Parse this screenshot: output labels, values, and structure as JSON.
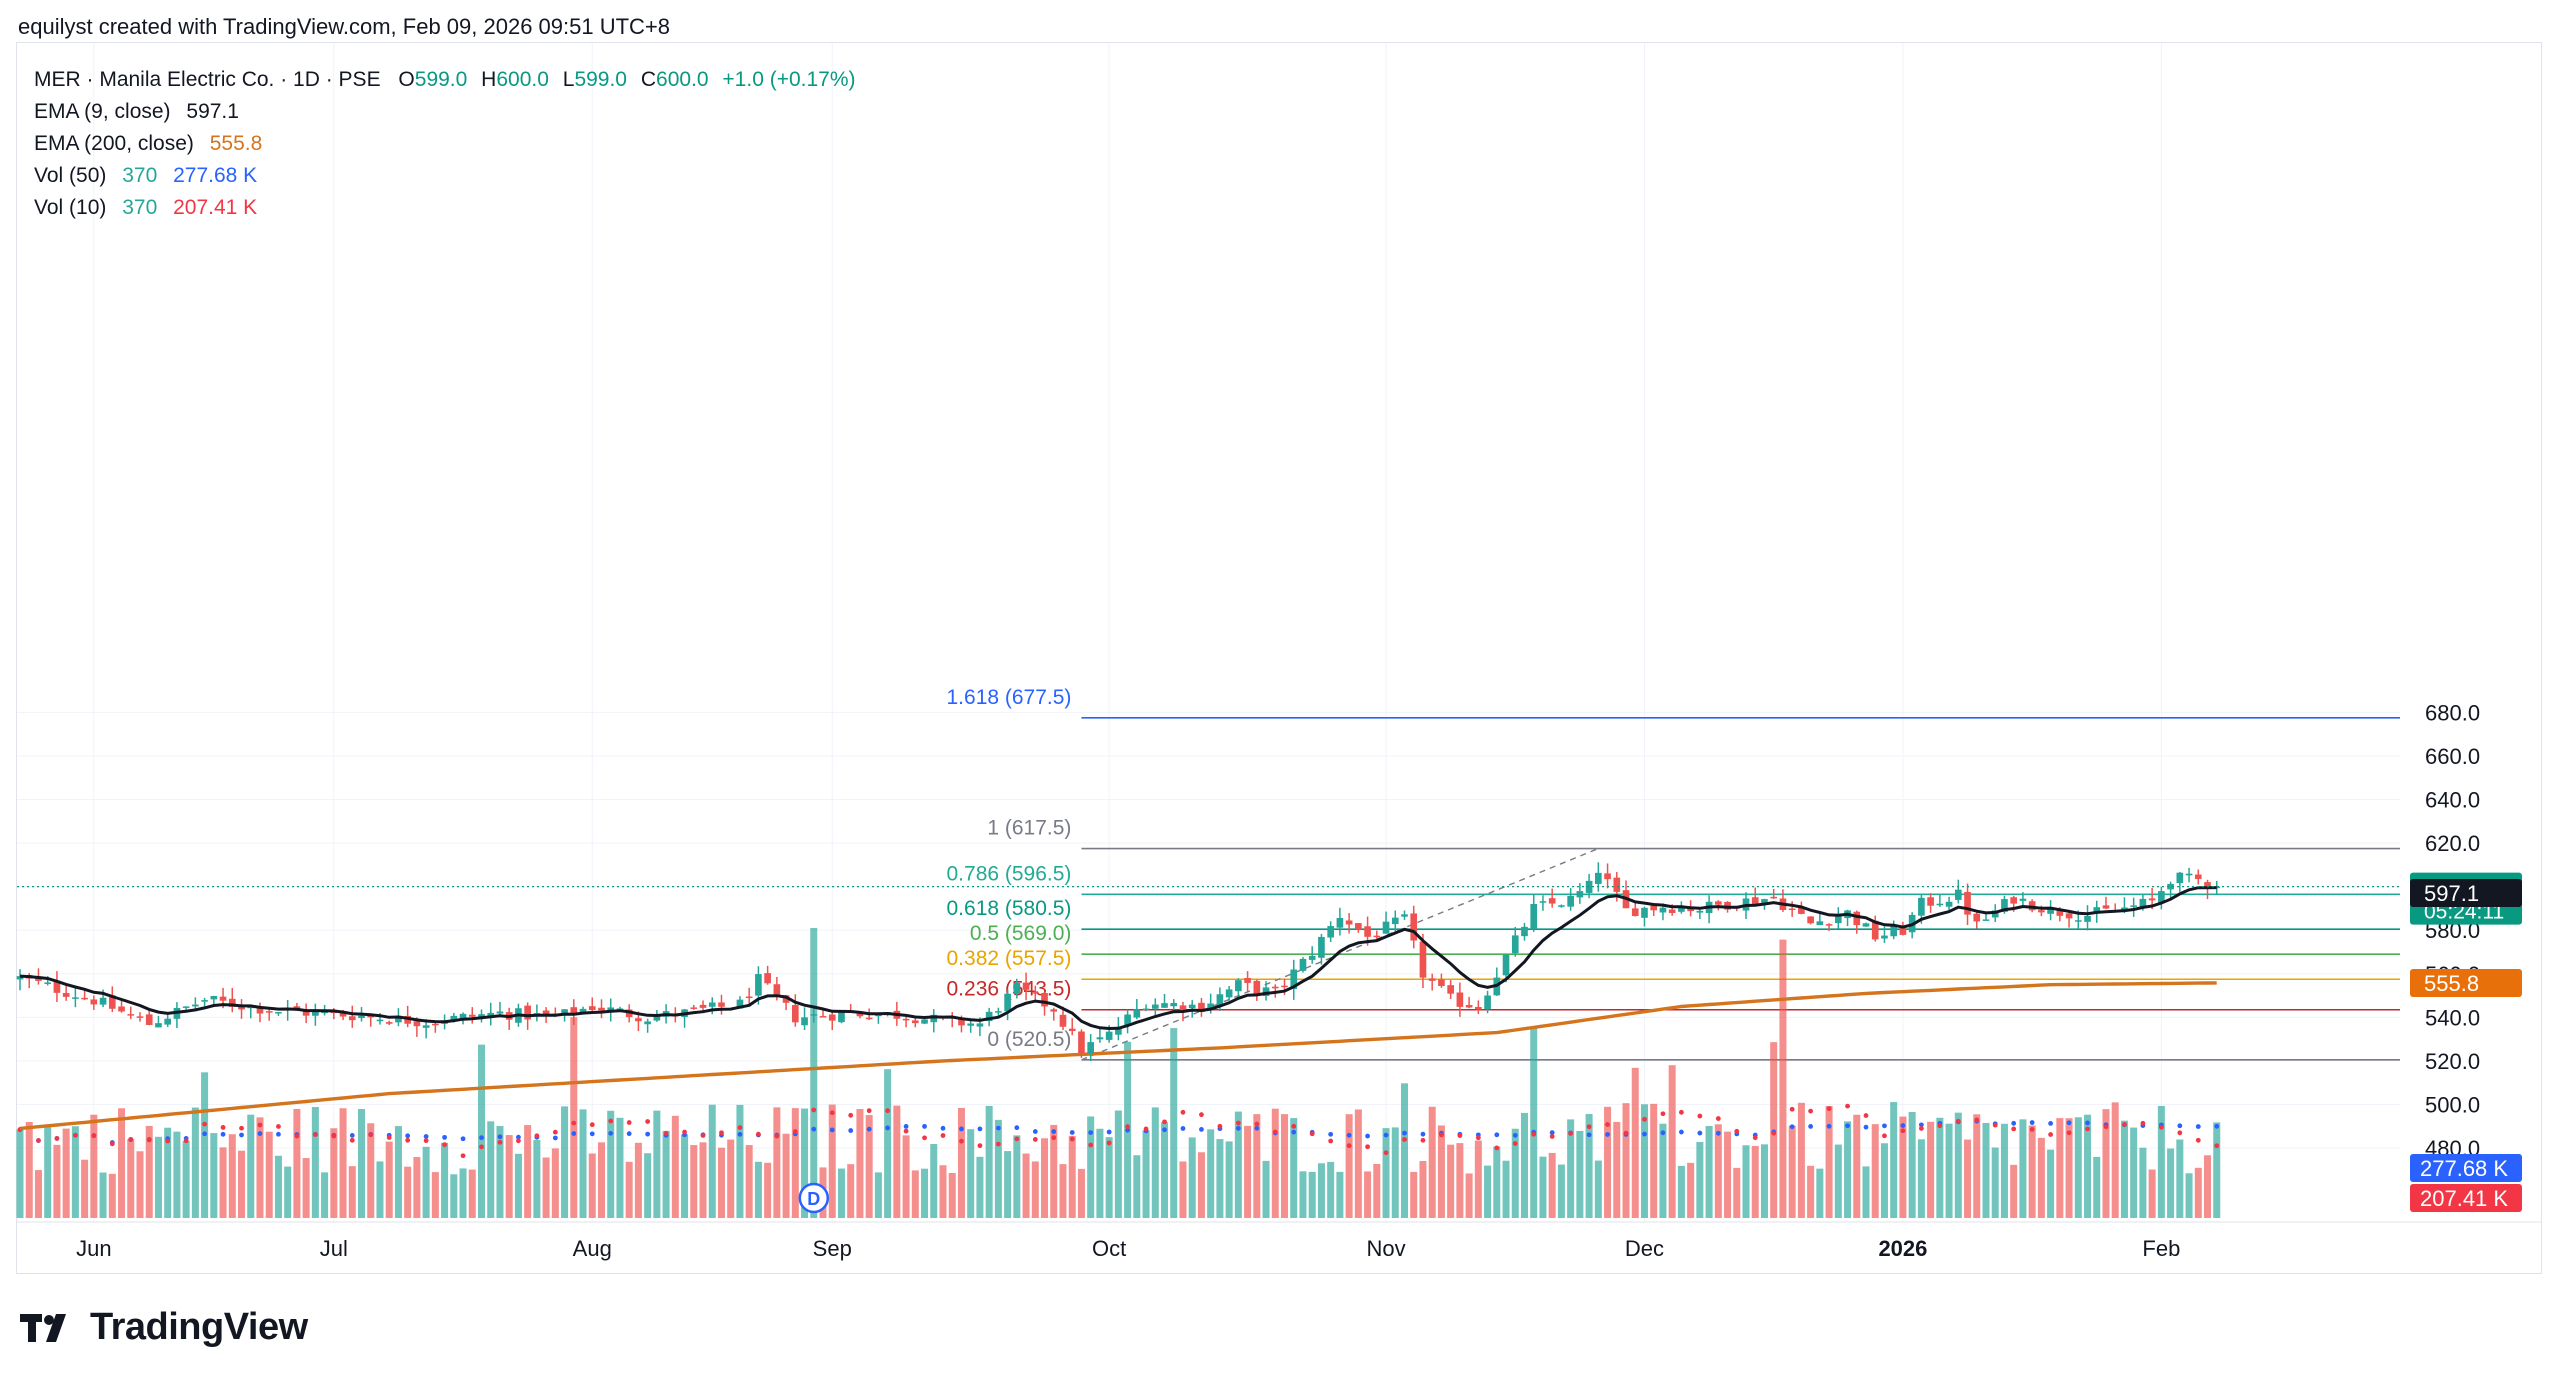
{
  "attribution": "equilyst created with TradingView.com, Feb 09, 2026 09:51 UTC+8",
  "legend": {
    "symbol": "MER · Manila Electric Co. · 1D · PSE",
    "o_label": "O",
    "o_value": "599.0",
    "h_label": "H",
    "h_value": "600.0",
    "l_label": "L",
    "l_value": "599.0",
    "c_label": "C",
    "c_value": "600.0",
    "change": "+1.0 (+0.17%)",
    "ema9_label": "EMA (9, close)",
    "ema9_value": "597.1",
    "ema200_label": "EMA (200, close)",
    "ema200_value": "555.8",
    "vol50_label": "Vol (50)",
    "vol50_a": "370",
    "vol50_b": "277.68 K",
    "vol10_label": "Vol (10)",
    "vol10_a": "370",
    "vol10_b": "207.41 K"
  },
  "brand": "TradingView",
  "colors": {
    "up": "#26a69a",
    "down": "#ef5350",
    "ema9": "#131722",
    "ema200": "#d4751e",
    "vol50": "#2962ff",
    "vol10": "#f23645"
  },
  "chart_data": {
    "type": "candlestick",
    "y_ticks": [
      "480.0",
      "500.0",
      "520.0",
      "540.0",
      "560.0",
      "580.0",
      "600.0",
      "620.0",
      "640.0",
      "660.0",
      "680.0"
    ],
    "ylim": [
      463,
      685
    ],
    "x_labels": [
      {
        "label": "Jun",
        "bar": 8
      },
      {
        "label": "Jul",
        "bar": 34
      },
      {
        "label": "Aug",
        "bar": 62
      },
      {
        "label": "Sep",
        "bar": 88
      },
      {
        "label": "Oct",
        "bar": 118
      },
      {
        "label": "Nov",
        "bar": 148
      },
      {
        "label": "Dec",
        "bar": 176
      },
      {
        "label": "2026",
        "bar": 204
      },
      {
        "label": "Feb",
        "bar": 232
      }
    ],
    "bar_count": 239,
    "fib_levels": [
      {
        "label": "1.618 (677.5)",
        "price": 677.5,
        "color": "#2962ff"
      },
      {
        "label": "1 (617.5)",
        "price": 617.5,
        "color": "#787b86"
      },
      {
        "label": "0.786 (596.5)",
        "price": 596.5,
        "color": "#22ab94"
      },
      {
        "label": "0.618 (580.5)",
        "price": 580.5,
        "color": "#089981"
      },
      {
        "label": "0.5 (569.0)",
        "price": 569.0,
        "color": "#4caf50"
      },
      {
        "label": "0.382 (557.5)",
        "price": 557.5,
        "color": "#e8a400"
      },
      {
        "label": "0.236 (543.5)",
        "price": 543.5,
        "color": "#c62828"
      },
      {
        "label": "0 (520.5)",
        "price": 520.5,
        "color": "#787b86"
      }
    ],
    "fib_start_bar": 115,
    "fib_trend": {
      "from_bar": 115,
      "from_price": 520.5,
      "to_bar": 171,
      "to_price": 617.5
    },
    "price_labels": [
      {
        "text": "600.0",
        "price": 600.0,
        "bg": "#089981",
        "color": "#ffffff",
        "sub": "05:24:11"
      },
      {
        "text": "597.1",
        "price": 597.1,
        "bg": "#131722",
        "color": "#ffffff"
      },
      {
        "text": "555.8",
        "price": 555.8,
        "bg": "#e8700a",
        "color": "#ffffff"
      }
    ],
    "volume_labels": [
      {
        "text": "277.68 K",
        "bg": "#2962ff"
      },
      {
        "text": "207.41 K",
        "bg": "#f23645"
      }
    ],
    "dividend_marker": {
      "bar": 86,
      "label": "D"
    },
    "last_price": 600.0,
    "anchors": [
      [
        0,
        558
      ],
      [
        8,
        548
      ],
      [
        14,
        537
      ],
      [
        20,
        548
      ],
      [
        28,
        543
      ],
      [
        36,
        541
      ],
      [
        44,
        538
      ],
      [
        52,
        542
      ],
      [
        58,
        540
      ],
      [
        62,
        545
      ],
      [
        68,
        540
      ],
      [
        72,
        542
      ],
      [
        78,
        546
      ],
      [
        80,
        557
      ],
      [
        84,
        540
      ],
      [
        90,
        542
      ],
      [
        96,
        541
      ],
      [
        100,
        538
      ],
      [
        104,
        537
      ],
      [
        108,
        553
      ],
      [
        112,
        544
      ],
      [
        115,
        525
      ],
      [
        118,
        532
      ],
      [
        122,
        547
      ],
      [
        128,
        545
      ],
      [
        132,
        555
      ],
      [
        136,
        551
      ],
      [
        140,
        570
      ],
      [
        143,
        587
      ],
      [
        146,
        577
      ],
      [
        150,
        585
      ],
      [
        152,
        560
      ],
      [
        155,
        548
      ],
      [
        158,
        545
      ],
      [
        160,
        560
      ],
      [
        164,
        590
      ],
      [
        168,
        594
      ],
      [
        170,
        600
      ],
      [
        171,
        608
      ],
      [
        174,
        589
      ],
      [
        178,
        591
      ],
      [
        182,
        590
      ],
      [
        186,
        593
      ],
      [
        190,
        595
      ],
      [
        194,
        583
      ],
      [
        198,
        588
      ],
      [
        201,
        577
      ],
      [
        204,
        580
      ],
      [
        206,
        592
      ],
      [
        210,
        596
      ],
      [
        212,
        582
      ],
      [
        216,
        595
      ],
      [
        220,
        589
      ],
      [
        224,
        587
      ],
      [
        228,
        590
      ],
      [
        231,
        593
      ],
      [
        233,
        604
      ],
      [
        236,
        603
      ],
      [
        238,
        600
      ]
    ],
    "ema200": [
      [
        0,
        489
      ],
      [
        40,
        505
      ],
      [
        80,
        515
      ],
      [
        100,
        520
      ],
      [
        130,
        526
      ],
      [
        160,
        533
      ],
      [
        180,
        545
      ],
      [
        200,
        551
      ],
      [
        220,
        555
      ],
      [
        238,
        555.8
      ]
    ]
  }
}
